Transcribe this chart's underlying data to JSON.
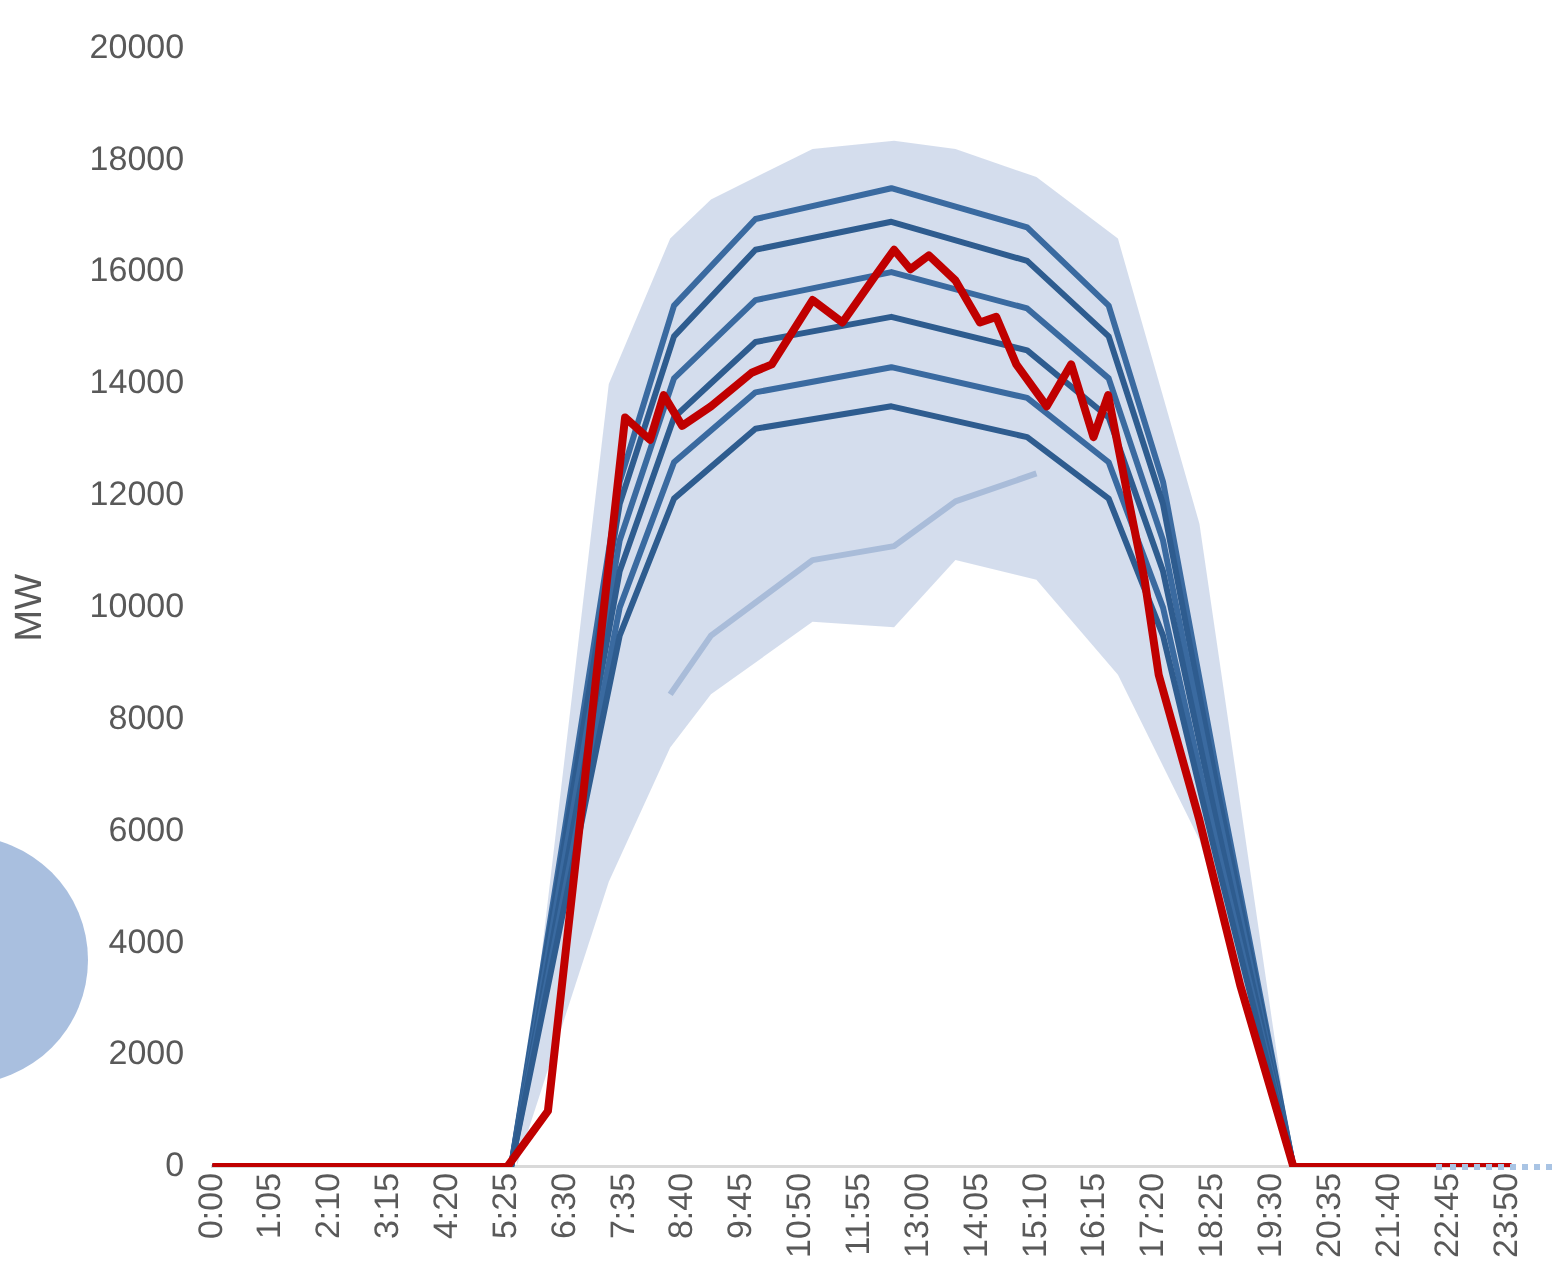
{
  "chart_data": {
    "type": "line",
    "ylabel": "MW",
    "marker": "none",
    "xlim": [
      0,
      23.917
    ],
    "xticks": [
      {
        "value": 0,
        "label": "0:00"
      },
      {
        "value": 1.0833,
        "label": "1:05"
      },
      {
        "value": 2.1667,
        "label": "2:10"
      },
      {
        "value": 3.25,
        "label": "3:15"
      },
      {
        "value": 4.3333,
        "label": "4:20"
      },
      {
        "value": 5.4167,
        "label": "5:25"
      },
      {
        "value": 6.5,
        "label": "6:30"
      },
      {
        "value": 7.5833,
        "label": "7:35"
      },
      {
        "value": 8.6667,
        "label": "8:40"
      },
      {
        "value": 9.75,
        "label": "9:45"
      },
      {
        "value": 10.8333,
        "label": "10:50"
      },
      {
        "value": 11.9167,
        "label": "11:55"
      },
      {
        "value": 13,
        "label": "13:00"
      },
      {
        "value": 14.0833,
        "label": "14:05"
      },
      {
        "value": 15.1667,
        "label": "15:10"
      },
      {
        "value": 16.25,
        "label": "16:15"
      },
      {
        "value": 17.3333,
        "label": "17:20"
      },
      {
        "value": 18.4167,
        "label": "18:25"
      },
      {
        "value": 19.5,
        "label": "19:30"
      },
      {
        "value": 20.5833,
        "label": "20:35"
      },
      {
        "value": 21.6667,
        "label": "21:40"
      },
      {
        "value": 22.75,
        "label": "22:45"
      },
      {
        "value": 23.8333,
        "label": "23:50"
      }
    ],
    "ylim": [
      0,
      20000
    ],
    "yticks": [
      0,
      2000,
      4000,
      6000,
      8000,
      10000,
      12000,
      14000,
      16000,
      18000,
      20000
    ],
    "series": [
      {
        "color": "#a9bcd9",
        "x": [
          0,
          5.6,
          7.3,
          8.43,
          9.18,
          11.05,
          12.55,
          13.68,
          15.17,
          16.67,
          18.17,
          19.9,
          23.917
        ],
        "values": [
          null,
          null,
          null,
          8450,
          9500,
          10850,
          11100,
          11900,
          12400,
          null,
          null,
          null,
          null
        ],
        "lower": [
          0,
          0,
          5100,
          7500,
          8450,
          9750,
          9650,
          10850,
          10500,
          8800,
          5850,
          0,
          0
        ],
        "upper": [
          0,
          0,
          14000,
          16600,
          17300,
          18200,
          18350,
          18200,
          17700,
          16600,
          11500,
          0,
          0
        ]
      },
      {
        "color": "#3a6aa0",
        "x": [
          0,
          5.5,
          6.5,
          7.5,
          8.5,
          10,
          12.5,
          15,
          16.5,
          17.5,
          18.5,
          19.9,
          23.917
        ],
        "values": [
          0,
          0,
          6100,
          12250,
          15400,
          16950,
          17500,
          16800,
          15400,
          12250,
          7000,
          0,
          0
        ]
      },
      {
        "color": "#2e5c8f",
        "x": [
          0,
          5.5,
          6.5,
          7.5,
          8.5,
          10,
          12.5,
          15,
          16.5,
          17.5,
          18.5,
          19.9,
          23.917
        ],
        "values": [
          0,
          0,
          5900,
          11850,
          14850,
          16400,
          16900,
          16200,
          14850,
          11850,
          6750,
          0,
          0
        ]
      },
      {
        "color": "#3a6aa0",
        "x": [
          0,
          5.5,
          6.5,
          7.5,
          8.5,
          10,
          12.5,
          15,
          16.5,
          17.5,
          18.5,
          19.9,
          23.917
        ],
        "values": [
          0,
          0,
          5600,
          11200,
          14100,
          15500,
          16000,
          15350,
          14100,
          11200,
          6400,
          0,
          0
        ]
      },
      {
        "color": "#2e5c8f",
        "x": [
          0,
          5.5,
          6.5,
          7.5,
          8.5,
          10,
          12.5,
          15,
          16.5,
          17.5,
          18.5,
          19.9,
          23.917
        ],
        "values": [
          0,
          0,
          5300,
          10650,
          13400,
          14750,
          15200,
          14600,
          13400,
          10650,
          6100,
          0,
          0
        ]
      },
      {
        "color": "#3a6aa0",
        "x": [
          0,
          5.5,
          6.5,
          7.5,
          8.5,
          10,
          12.5,
          15,
          16.5,
          17.5,
          18.5,
          19.9,
          23.917
        ],
        "values": [
          0,
          0,
          5000,
          10000,
          12600,
          13850,
          14300,
          13750,
          12600,
          10000,
          5700,
          0,
          0
        ]
      },
      {
        "color": "#2e5c8f",
        "x": [
          0,
          5.5,
          6.5,
          7.5,
          8.5,
          10,
          12.5,
          15,
          16.5,
          17.5,
          18.5,
          19.9,
          23.917
        ],
        "values": [
          0,
          0,
          4750,
          9500,
          11950,
          13200,
          13600,
          13050,
          11950,
          9500,
          5450,
          0,
          0
        ]
      },
      {
        "color": "#c00000",
        "x": [
          0,
          5.43,
          6.18,
          7.6,
          8.06,
          8.31,
          8.65,
          9.18,
          9.93,
          10.3,
          11.05,
          11.6,
          12.18,
          12.55,
          12.85,
          13.19,
          13.68,
          14.13,
          14.43,
          14.8,
          15.36,
          15.81,
          16.22,
          16.49,
          16.86,
          17.16,
          17.42,
          18.17,
          18.92,
          19.9,
          23.917
        ],
        "values": [
          0,
          0,
          1000,
          13400,
          13000,
          13800,
          13250,
          13600,
          14200,
          14350,
          15500,
          15100,
          15900,
          16400,
          16050,
          16300,
          15850,
          15100,
          15200,
          14350,
          13600,
          14350,
          13050,
          13800,
          11950,
          10500,
          8800,
          6200,
          3250,
          0,
          0
        ]
      }
    ]
  }
}
